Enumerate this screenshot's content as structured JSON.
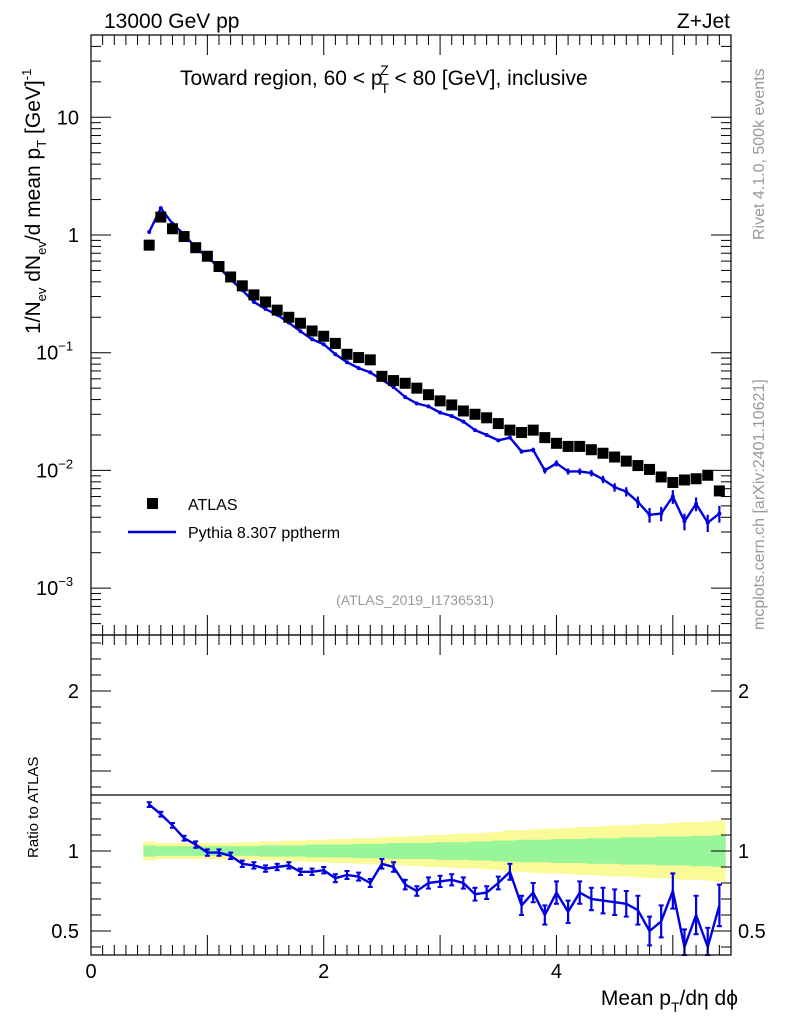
{
  "header": {
    "left": "13000 GeV pp",
    "right": "Z+Jet"
  },
  "side": {
    "top": "Rivet 4.1.0,  500k events",
    "bottom": "mcplots.cern.ch [arXiv:2401.10621]"
  },
  "colors": {
    "data": "#000000",
    "mc": "#0000e0",
    "band_inner": "#99f599",
    "band_outer": "#fafa99"
  },
  "chart_data": [
    {
      "type": "scatter",
      "title_parts": [
        "Toward region, 60 < p",
        "T",
        "Z",
        " < 80 [GeV], inclusive"
      ],
      "ylabel_parts": [
        "1/N",
        "ev",
        " dN",
        "ev",
        "/d mean p",
        "T",
        " [GeV]",
        "-1"
      ],
      "yscale": "log",
      "ylim": [
        0.0004,
        50
      ],
      "xlim": [
        0,
        5.5
      ],
      "yticks": [
        {
          "v": 10,
          "label": "10"
        },
        {
          "v": 1,
          "label": "1"
        },
        {
          "v": 0.1,
          "label": "10",
          "exp": "−1"
        },
        {
          "v": 0.01,
          "label": "10",
          "exp": "−2"
        },
        {
          "v": 0.001,
          "label": "10",
          "exp": "−3"
        }
      ],
      "watermark": "(ATLAS_2019_I1736531)",
      "legend": [
        {
          "label": "ATLAS",
          "kind": "marker"
        },
        {
          "label": "Pythia 8.307 pptherm",
          "kind": "line"
        }
      ],
      "x": [
        0.5,
        0.6,
        0.7,
        0.8,
        0.9,
        1.0,
        1.1,
        1.2,
        1.3,
        1.4,
        1.5,
        1.6,
        1.7,
        1.8,
        1.9,
        2.0,
        2.1,
        2.2,
        2.3,
        2.4,
        2.5,
        2.6,
        2.7,
        2.8,
        2.9,
        3.0,
        3.1,
        3.2,
        3.3,
        3.4,
        3.5,
        3.6,
        3.7,
        3.8,
        3.9,
        4.0,
        4.1,
        4.2,
        4.3,
        4.4,
        4.5,
        4.6,
        4.7,
        4.8,
        4.9,
        5.0,
        5.1,
        5.2,
        5.3,
        5.4
      ],
      "series": [
        {
          "name": "ATLAS",
          "values": [
            0.82,
            1.42,
            1.13,
            0.97,
            0.78,
            0.66,
            0.54,
            0.44,
            0.37,
            0.31,
            0.27,
            0.23,
            0.2,
            0.178,
            0.153,
            0.138,
            0.12,
            0.097,
            0.091,
            0.087,
            0.063,
            0.058,
            0.055,
            0.05,
            0.044,
            0.039,
            0.036,
            0.032,
            0.03,
            0.028,
            0.025,
            0.022,
            0.021,
            0.022,
            0.019,
            0.017,
            0.016,
            0.016,
            0.015,
            0.014,
            0.013,
            0.012,
            0.011,
            0.0102,
            0.0088,
            0.0079,
            0.0083,
            0.0085,
            0.0091,
            0.0067
          ]
        },
        {
          "name": "Pythia 8.307 pptherm",
          "values": [
            1.06,
            1.69,
            1.25,
            1.01,
            0.78,
            0.65,
            0.53,
            0.42,
            0.34,
            0.27,
            0.235,
            0.21,
            0.18,
            0.152,
            0.13,
            0.118,
            0.097,
            0.083,
            0.074,
            0.068,
            0.059,
            0.051,
            0.042,
            0.037,
            0.035,
            0.031,
            0.029,
            0.026,
            0.022,
            0.02,
            0.018,
            0.019,
            0.0145,
            0.0149,
            0.01,
            0.0115,
            0.0098,
            0.0098,
            0.0095,
            0.0084,
            0.0072,
            0.0066,
            0.0054,
            0.0042,
            0.0043,
            0.006,
            0.0037,
            0.0052,
            0.0036,
            0.0043
          ],
          "errors": [
            0.02,
            0.03,
            0.02,
            0.02,
            0.01,
            0.01,
            0.01,
            0.008,
            0.006,
            0.005,
            0.004,
            0.004,
            0.003,
            0.003,
            0.002,
            0.002,
            0.002,
            0.0015,
            0.0013,
            0.0012,
            0.001,
            0.0009,
            0.0008,
            0.0007,
            0.0007,
            0.0006,
            0.0006,
            0.0005,
            0.0005,
            0.0005,
            0.0005,
            0.0006,
            0.0006,
            0.0007,
            0.0006,
            0.0007,
            0.0006,
            0.0006,
            0.0006,
            0.0006,
            0.0006,
            0.0006,
            0.0006,
            0.0006,
            0.0006,
            0.0008,
            0.0006,
            0.0007,
            0.0006,
            0.0007
          ]
        }
      ]
    },
    {
      "type": "line",
      "ylabel": "Ratio to ATLAS",
      "xlabel_parts": [
        "Mean p",
        "T",
        "/dη dϕ"
      ],
      "ylim": [
        0.35,
        2.35
      ],
      "xlim": [
        0,
        5.5
      ],
      "yticks": [
        {
          "v": 2,
          "label": "2"
        },
        {
          "v": 1,
          "label": "1"
        },
        {
          "v": 0.5,
          "label": "0.5"
        }
      ],
      "xticks": [
        {
          "v": 0,
          "label": "0"
        },
        {
          "v": 2,
          "label": "2"
        },
        {
          "v": 4,
          "label": "4"
        }
      ],
      "x": [
        0.5,
        0.6,
        0.7,
        0.8,
        0.9,
        1.0,
        1.1,
        1.2,
        1.3,
        1.4,
        1.5,
        1.6,
        1.7,
        1.8,
        1.9,
        2.0,
        2.1,
        2.2,
        2.3,
        2.4,
        2.5,
        2.6,
        2.7,
        2.8,
        2.9,
        3.0,
        3.1,
        3.2,
        3.3,
        3.4,
        3.5,
        3.6,
        3.7,
        3.8,
        3.9,
        4.0,
        4.1,
        4.2,
        4.3,
        4.4,
        4.5,
        4.6,
        4.7,
        4.8,
        4.9,
        5.0,
        5.1,
        5.2,
        5.3,
        5.4
      ],
      "series": [
        {
          "name": "Pythia 8.307 pptherm",
          "values": [
            1.29,
            1.23,
            1.16,
            1.08,
            1.04,
            0.99,
            0.99,
            0.97,
            0.92,
            0.91,
            0.89,
            0.9,
            0.91,
            0.87,
            0.87,
            0.88,
            0.83,
            0.85,
            0.84,
            0.8,
            0.92,
            0.9,
            0.79,
            0.75,
            0.8,
            0.81,
            0.82,
            0.8,
            0.73,
            0.74,
            0.8,
            0.87,
            0.66,
            0.74,
            0.6,
            0.74,
            0.62,
            0.74,
            0.7,
            0.69,
            0.68,
            0.67,
            0.63,
            0.5,
            0.56,
            0.75,
            0.4,
            0.6,
            0.4,
            0.66
          ],
          "errors": [
            0.015,
            0.015,
            0.015,
            0.015,
            0.02,
            0.02,
            0.02,
            0.02,
            0.02,
            0.02,
            0.02,
            0.02,
            0.02,
            0.02,
            0.02,
            0.02,
            0.025,
            0.025,
            0.025,
            0.025,
            0.03,
            0.03,
            0.03,
            0.03,
            0.035,
            0.035,
            0.035,
            0.035,
            0.04,
            0.04,
            0.04,
            0.05,
            0.06,
            0.06,
            0.06,
            0.07,
            0.07,
            0.07,
            0.07,
            0.08,
            0.08,
            0.08,
            0.09,
            0.09,
            0.1,
            0.11,
            0.11,
            0.12,
            0.12,
            0.13
          ]
        }
      ],
      "bands": {
        "x_edges": [
          0.45,
          0.55,
          0.65,
          0.75,
          0.85,
          0.95,
          1.05,
          1.15,
          1.25,
          1.35,
          1.45,
          1.55,
          1.65,
          1.75,
          1.85,
          1.95,
          2.05,
          2.15,
          2.25,
          2.35,
          2.45,
          2.55,
          2.65,
          2.75,
          2.85,
          2.95,
          3.05,
          3.15,
          3.25,
          3.35,
          3.45,
          3.55,
          3.65,
          3.75,
          3.85,
          3.95,
          4.05,
          4.15,
          4.25,
          4.35,
          4.45,
          4.55,
          4.65,
          4.75,
          4.85,
          4.95,
          5.05,
          5.15,
          5.25,
          5.35,
          5.45
        ],
        "inner": [
          0.035,
          0.03,
          0.03,
          0.03,
          0.03,
          0.03,
          0.03,
          0.03,
          0.03,
          0.03,
          0.035,
          0.035,
          0.035,
          0.035,
          0.04,
          0.04,
          0.04,
          0.04,
          0.045,
          0.045,
          0.045,
          0.05,
          0.05,
          0.05,
          0.05,
          0.055,
          0.055,
          0.055,
          0.06,
          0.06,
          0.065,
          0.065,
          0.07,
          0.07,
          0.07,
          0.075,
          0.075,
          0.075,
          0.08,
          0.08,
          0.08,
          0.085,
          0.085,
          0.085,
          0.09,
          0.09,
          0.09,
          0.095,
          0.095,
          0.1
        ],
        "outer": [
          0.06,
          0.05,
          0.05,
          0.05,
          0.05,
          0.05,
          0.05,
          0.05,
          0.055,
          0.055,
          0.06,
          0.06,
          0.065,
          0.065,
          0.07,
          0.07,
          0.075,
          0.075,
          0.08,
          0.08,
          0.085,
          0.09,
          0.09,
          0.095,
          0.1,
          0.1,
          0.105,
          0.11,
          0.11,
          0.115,
          0.12,
          0.13,
          0.13,
          0.135,
          0.14,
          0.14,
          0.145,
          0.15,
          0.15,
          0.155,
          0.16,
          0.16,
          0.165,
          0.17,
          0.17,
          0.175,
          0.18,
          0.18,
          0.185,
          0.19
        ]
      }
    }
  ]
}
